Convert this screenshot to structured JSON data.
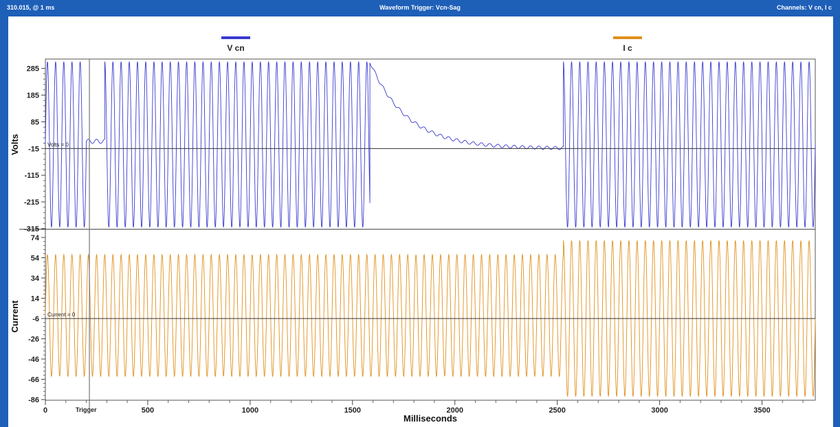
{
  "window": {
    "left_text": "310.015, @ 1 ms",
    "title": "Waveform Trigger: Vcn-Sag",
    "right_text": "Channels: V cn, I c"
  },
  "colors": {
    "frame": "#1e5fb8",
    "voltage": "#3a3ad0",
    "current": "#e0901c",
    "zero_line": "#333333"
  },
  "chart_data": {
    "type": "line",
    "xlabel": "Milliseconds",
    "xlim": [
      0,
      3760
    ],
    "x_ticks": [
      0,
      500,
      1000,
      1500,
      2000,
      2500,
      3000,
      3500
    ],
    "trigger": {
      "label": "Trigger",
      "x": 215
    },
    "frequency_hz": 25,
    "panels": [
      {
        "id": "voltage",
        "ylabel": "Volts",
        "ylim": [
          -315,
          315
        ],
        "y_ticks": [
          285,
          185,
          85,
          -15,
          -115,
          -215,
          -315
        ],
        "zero_label": "Volts = 0",
        "zero_value": -15,
        "series": {
          "name": "V cn",
          "color": "#3a3ad0",
          "segments": [
            {
              "from": 0,
              "to": 200,
              "mode": "sine",
              "amplitude": 310,
              "center": 0
            },
            {
              "from": 200,
              "to": 290,
              "mode": "sag",
              "amplitude": 8,
              "center": 12
            },
            {
              "from": 290,
              "to": 1585,
              "mode": "sine",
              "amplitude": 310,
              "center": 0
            },
            {
              "from": 1585,
              "to": 2530,
              "mode": "decay",
              "start": 310,
              "end": -15,
              "tau": 180,
              "ripple": 6
            },
            {
              "from": 2530,
              "to": 3760,
              "mode": "sine",
              "amplitude": 310,
              "center": 0
            }
          ]
        }
      },
      {
        "id": "current",
        "ylabel": "Current",
        "ylim": [
          -86,
          78
        ],
        "y_ticks": [
          74,
          54,
          34,
          14,
          -6,
          -26,
          -46,
          -66,
          -86
        ],
        "zero_label": "Current = 0",
        "zero_value": -6,
        "series": {
          "name": "I c",
          "color": "#e0901c",
          "segments": [
            {
              "from": 0,
              "to": 2530,
              "mode": "sine",
              "amplitude": 60,
              "center": -3
            },
            {
              "from": 2530,
              "to": 3760,
              "mode": "sine",
              "amplitude": 77,
              "center": -6
            }
          ]
        }
      }
    ],
    "legend": [
      {
        "name": "V cn",
        "color": "#3a3ad0"
      },
      {
        "name": "I c",
        "color": "#e0901c"
      }
    ]
  }
}
